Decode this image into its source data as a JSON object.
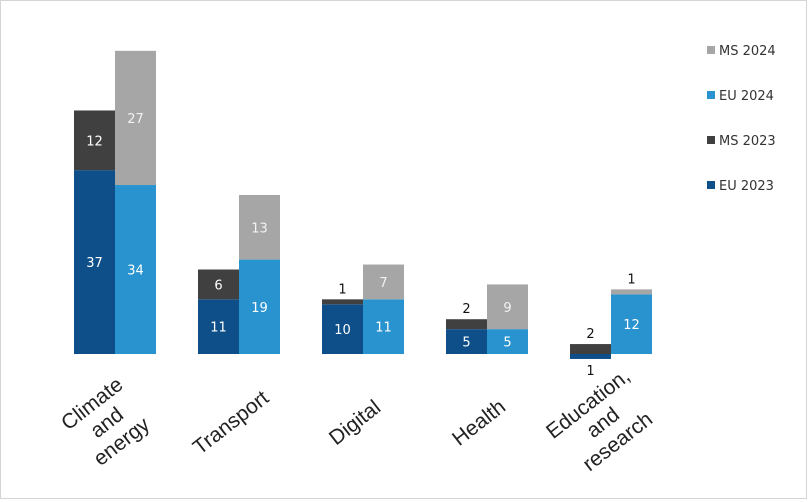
{
  "chart_data": {
    "type": "bar",
    "stacked": true,
    "grouped": true,
    "categories": [
      [
        "Climate",
        "and",
        "energy"
      ],
      [
        "Transport"
      ],
      [
        "Digital"
      ],
      [
        "Health"
      ],
      [
        "Education,",
        "and",
        "research"
      ]
    ],
    "groups": [
      {
        "year": "2023",
        "series": [
          {
            "name": "EU 2023",
            "values": [
              37,
              11,
              10,
              5,
              -1
            ],
            "color": "#0e4f8a"
          },
          {
            "name": "MS 2023",
            "values": [
              12,
              6,
              1,
              2,
              2
            ],
            "color": "#404040"
          }
        ]
      },
      {
        "year": "2024",
        "series": [
          {
            "name": "EU 2024",
            "values": [
              34,
              19,
              11,
              5,
              12
            ],
            "color": "#2893cf"
          },
          {
            "name": "MS 2024",
            "values": [
              27,
              13,
              7,
              9,
              1
            ],
            "color": "#a6a6a6"
          }
        ]
      }
    ],
    "legend": {
      "position": "right",
      "order": [
        "MS 2024",
        "EU 2024",
        "MS 2023",
        "EU 2023"
      ]
    },
    "grid": false,
    "ylim": [
      -2,
      62
    ]
  }
}
